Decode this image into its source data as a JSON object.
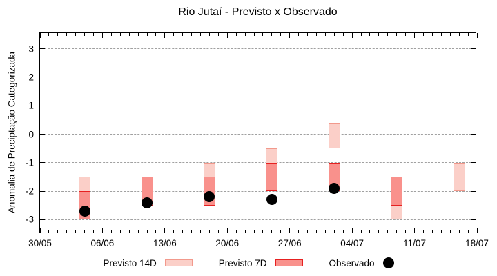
{
  "chart_data": {
    "type": "range-bar",
    "title": "Rio Jutaí - Previsto x Observado",
    "ylabel": "Anomalia de Preciptação Categorizada",
    "ylim": [
      -3.5,
      3.55
    ],
    "yticks": [
      3,
      2,
      1,
      0,
      -1,
      -2,
      -3
    ],
    "x_days": 49,
    "x_minor_step": 1,
    "x_major_step": 7,
    "grid": true,
    "legend_position": "bottom",
    "xticks": [
      {
        "day": 0,
        "label": "30/05"
      },
      {
        "day": 7,
        "label": "06/06"
      },
      {
        "day": 14,
        "label": "13/06"
      },
      {
        "day": 21,
        "label": "20/06"
      },
      {
        "day": 28,
        "label": "27/06"
      },
      {
        "day": 35,
        "label": "04/07"
      },
      {
        "day": 42,
        "label": "11/07"
      },
      {
        "day": 49,
        "label": "18/07"
      }
    ],
    "groups": [
      {
        "date": "04/06",
        "day": 5,
        "previsto_14d": [
          -3.0,
          -1.5
        ],
        "previsto_7d": [
          -3.0,
          -2.0
        ],
        "observado": -2.7
      },
      {
        "date": "11/06",
        "day": 12,
        "previsto_14d": null,
        "previsto_7d": [
          -2.5,
          -1.5
        ],
        "observado": -2.4
      },
      {
        "date": "18/06",
        "day": 19,
        "previsto_14d": [
          -2.5,
          -1.0
        ],
        "previsto_7d": [
          -2.5,
          -1.5
        ],
        "observado": -2.2
      },
      {
        "date": "25/06",
        "day": 26,
        "previsto_14d": [
          -2.0,
          -0.5
        ],
        "previsto_7d": [
          -2.0,
          -1.0
        ],
        "observado": -2.3
      },
      {
        "date": "02/07",
        "day": 33,
        "previsto_14d": [
          -0.5,
          0.4
        ],
        "previsto_7d": [
          -2.0,
          -1.0
        ],
        "observado": -1.9
      },
      {
        "date": "09/07",
        "day": 40,
        "previsto_14d": [
          -3.0,
          -1.5
        ],
        "previsto_7d": [
          -2.5,
          -1.5
        ],
        "observado": null
      },
      {
        "date": "16/07",
        "day": 47,
        "previsto_14d": [
          -2.0,
          -1.0
        ],
        "previsto_7d": null,
        "observado": null
      }
    ],
    "legend": [
      {
        "label": "Previsto 14D",
        "swatch": "bar-light"
      },
      {
        "label": "Previsto 7D",
        "swatch": "bar-dark"
      },
      {
        "label": "Observado",
        "swatch": "dot"
      }
    ],
    "colors": {
      "previsto_14d_fill": "#fbcfc8",
      "previsto_14d_border": "#f2998c",
      "previsto_7d_fill": "#f9918c",
      "previsto_7d_border": "#e62121",
      "observado": "#000000",
      "gridline": "#a0a0a0",
      "axis": "#000000"
    }
  }
}
